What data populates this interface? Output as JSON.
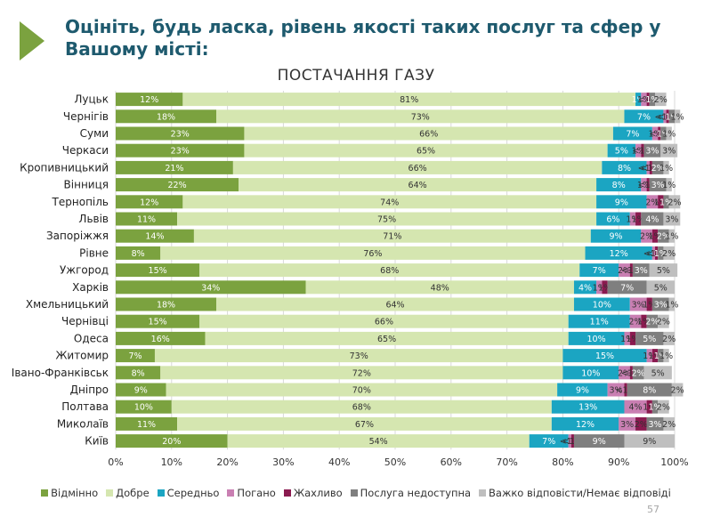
{
  "slide": {
    "title": "Оцініть, будь ласка, рівень якості таких послуг та сфер у Вашому місті:",
    "page_number": "57"
  },
  "chart_data": {
    "type": "bar",
    "orientation": "horizontal",
    "stacked": "percent",
    "title": "ПОСТАЧАННЯ ГАЗУ",
    "xlim": [
      0,
      100
    ],
    "x_ticks": [
      "0%",
      "10%",
      "20%",
      "30%",
      "40%",
      "50%",
      "60%",
      "70%",
      "80%",
      "90%",
      "100%"
    ],
    "grid": true,
    "legend_position": "bottom",
    "categories": [
      "Луцьк",
      "Чернігів",
      "Суми",
      "Черкаси",
      "Кропивницький",
      "Вінниця",
      "Тернопіль",
      "Львів",
      "Запоріжжя",
      "Рівне",
      "Ужгород",
      "Харків",
      "Хмельницький",
      "Чернівці",
      "Одеса",
      "Житомир",
      "Івано-Франківськ",
      "Дніпро",
      "Полтава",
      "Миколаїв",
      "Київ"
    ],
    "series": [
      {
        "name": "Відмінно",
        "color": "#7ba23f",
        "values": [
          12,
          18,
          23,
          23,
          21,
          22,
          12,
          11,
          14,
          8,
          15,
          34,
          18,
          15,
          16,
          7,
          8,
          9,
          10,
          11,
          20
        ],
        "labels": [
          "12%",
          "18%",
          "23%",
          "23%",
          "21%",
          "22%",
          "12%",
          "11%",
          "14%",
          "8%",
          "15%",
          "34%",
          "18%",
          "15%",
          "16%",
          "7%",
          "8%",
          "9%",
          "10%",
          "11%",
          "20%"
        ]
      },
      {
        "name": "Добре",
        "color": "#d5e6b0",
        "values": [
          81,
          73,
          66,
          65,
          66,
          64,
          74,
          75,
          71,
          76,
          68,
          48,
          64,
          66,
          65,
          73,
          72,
          70,
          68,
          67,
          54
        ],
        "labels": [
          "81%",
          "73%",
          "66%",
          "65%",
          "66%",
          "64%",
          "74%",
          "75%",
          "71%",
          "76%",
          "68%",
          "48%",
          "64%",
          "66%",
          "65%",
          "73%",
          "72%",
          "70%",
          "68%",
          "67%",
          "54%"
        ]
      },
      {
        "name": "Середньо",
        "color": "#1ba5c2",
        "values": [
          1,
          7,
          7,
          5,
          8,
          8,
          9,
          6,
          9,
          12,
          7,
          4,
          10,
          11,
          10,
          15,
          10,
          9,
          13,
          12,
          7
        ],
        "labels": [
          "1%",
          "7%",
          "7%",
          "5%",
          "8%",
          "8%",
          "9%",
          "6%",
          "9%",
          "12%",
          "7%",
          "4%",
          "10%",
          "11%",
          "10%",
          "15%",
          "10%",
          "9%",
          "13%",
          "12%",
          "7%"
        ]
      },
      {
        "name": "Погано",
        "color": "#c97fb2",
        "values": [
          1,
          0.5,
          1,
          1,
          0.5,
          1,
          2,
          1,
          2,
          0.5,
          2,
          1,
          3,
          2,
          1,
          1,
          2,
          3,
          4,
          3,
          0.5
        ],
        "labels": [
          "1%",
          "<1%",
          "1%",
          "1%",
          "<1%",
          "1%",
          "2%",
          "1%",
          "2%",
          "<1%",
          "2%",
          "1%",
          "3%",
          "2%",
          "1%",
          "1%",
          "2%",
          "3%",
          "4%",
          "3%",
          "<1%"
        ]
      },
      {
        "name": "Жахливо",
        "color": "#8a1a4f",
        "values": [
          0.5,
          0.5,
          0.5,
          0.5,
          0.5,
          0.5,
          1,
          1,
          1,
          0.5,
          0.5,
          1,
          1,
          1,
          1,
          1,
          0.5,
          0.5,
          1,
          2,
          0.5
        ],
        "labels": [
          "<1%",
          "<1%",
          "<1%",
          "<1%",
          "<1%",
          "<1%",
          "1%",
          "1%",
          "1%",
          "<1%",
          "<1%",
          "1%",
          "1%",
          "1%",
          "1%",
          "1%",
          "<1%",
          "<1%",
          "1%",
          "2%",
          "<1%"
        ]
      },
      {
        "name": "Послуга недоступна",
        "color": "#7f7f7f",
        "values": [
          1,
          1,
          1,
          3,
          2,
          3,
          1,
          4,
          2,
          1,
          3,
          7,
          3,
          2,
          5,
          1,
          2,
          8,
          1,
          3,
          9
        ],
        "labels": [
          "1%",
          "1%",
          "1%",
          "3%",
          "2%",
          "3%",
          "1%",
          "4%",
          "2%",
          "1%",
          "3%",
          "7%",
          "3%",
          "2%",
          "5%",
          "1%",
          "2%",
          "8%",
          "1%",
          "3%",
          "9%"
        ]
      },
      {
        "name": "Важко відповісти/Немає відповіді",
        "color": "#bfbfbf",
        "values": [
          2,
          1,
          1,
          3,
          1,
          1,
          2,
          3,
          1,
          2,
          5,
          5,
          1,
          2,
          2,
          1,
          5,
          2,
          2,
          2,
          9
        ],
        "labels": [
          "2%",
          "1%",
          "1%",
          "3%",
          "1%",
          "1%",
          "2%",
          "3%",
          "1%",
          "2%",
          "5%",
          "5%",
          "1%",
          "2%",
          "2%",
          "1%",
          "5%",
          "2%",
          "2%",
          "2%",
          "9%"
        ]
      }
    ]
  }
}
